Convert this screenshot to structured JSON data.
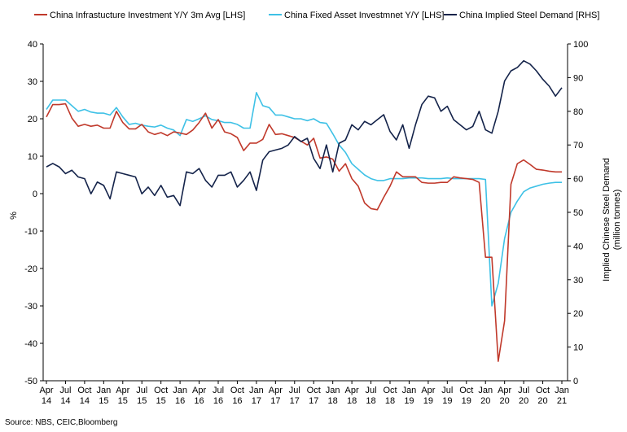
{
  "chart_data": {
    "type": "line",
    "title": "",
    "source": "Source: NBS, CEIC,Bloomberg",
    "left_axis": {
      "label": "%",
      "ylim": [
        -50,
        40
      ],
      "ticks": [
        "40",
        "30",
        "20",
        "10",
        "0",
        "-10",
        "-20",
        "-30",
        "-40",
        "-50"
      ]
    },
    "right_axis": {
      "label_line1": "Implied Chinese Steel Demand",
      "label_line2": "(million tonnes)",
      "ylim": [
        0,
        100
      ],
      "ticks": [
        "100",
        "90",
        "80",
        "70",
        "60",
        "50",
        "40",
        "30",
        "20",
        "10",
        "0"
      ]
    },
    "x_ticks": [
      {
        "month": "Apr",
        "year": "14"
      },
      {
        "month": "Jul",
        "year": "14"
      },
      {
        "month": "Oct",
        "year": "14"
      },
      {
        "month": "Jan",
        "year": "15"
      },
      {
        "month": "Apr",
        "year": "15"
      },
      {
        "month": "Jul",
        "year": "15"
      },
      {
        "month": "Oct",
        "year": "15"
      },
      {
        "month": "Jan",
        "year": "16"
      },
      {
        "month": "Apr",
        "year": "16"
      },
      {
        "month": "Jul",
        "year": "16"
      },
      {
        "month": "Oct",
        "year": "16"
      },
      {
        "month": "Jan",
        "year": "17"
      },
      {
        "month": "Apr",
        "year": "17"
      },
      {
        "month": "Jul",
        "year": "17"
      },
      {
        "month": "Oct",
        "year": "17"
      },
      {
        "month": "Jan",
        "year": "18"
      },
      {
        "month": "Apr",
        "year": "18"
      },
      {
        "month": "Jul",
        "year": "18"
      },
      {
        "month": "Oct",
        "year": "18"
      },
      {
        "month": "Jan",
        "year": "19"
      },
      {
        "month": "Apr",
        "year": "19"
      },
      {
        "month": "Jul",
        "year": "19"
      },
      {
        "month": "Oct",
        "year": "19"
      },
      {
        "month": "Jan",
        "year": "20"
      },
      {
        "month": "Apr",
        "year": "20"
      },
      {
        "month": "Jul",
        "year": "20"
      },
      {
        "month": "Oct",
        "year": "20"
      },
      {
        "month": "Jan",
        "year": "21"
      }
    ],
    "series": [
      {
        "name": "China Infrastucture Investment Y/Y 3m Avg [LHS]",
        "axis": "left",
        "color": "#c0392b",
        "values": [
          20.5,
          23.8,
          23.8,
          24.0,
          20.2,
          18.0,
          18.5,
          18.0,
          18.3,
          17.5,
          17.5,
          22.0,
          19.0,
          17.3,
          17.3,
          18.5,
          16.5,
          15.8,
          16.3,
          15.5,
          16.5,
          16.2,
          15.8,
          17.0,
          19.0,
          21.5,
          17.5,
          19.8,
          16.5,
          16.0,
          15.0,
          11.5,
          13.5,
          13.5,
          14.5,
          18.5,
          15.8,
          16.0,
          15.5,
          15.0,
          14.0,
          13.0,
          14.8,
          9.5,
          9.8,
          9.2,
          6.0,
          8.0,
          4.0,
          2.0,
          -2.5,
          -4.0,
          -4.3,
          -1.0,
          2.0,
          5.8,
          4.5,
          4.5,
          4.5,
          3.0,
          2.8,
          2.8,
          3.0,
          3.0,
          4.5,
          4.2,
          4.0,
          3.8,
          3.0,
          -17.0,
          -17.0,
          -44.8,
          -34.0,
          2.5,
          8.0,
          9.0,
          7.8,
          6.5,
          6.3,
          6.0,
          5.8,
          5.8
        ]
      },
      {
        "name": "China Fixed Asset Investmnet Y/Y [LHS]",
        "axis": "left",
        "color": "#3ec1e6",
        "values": [
          22.5,
          25.0,
          25.0,
          25.0,
          23.5,
          22.0,
          22.5,
          21.8,
          21.5,
          21.5,
          21.0,
          23.0,
          20.5,
          18.5,
          18.8,
          18.3,
          18.0,
          17.8,
          18.3,
          17.5,
          17.0,
          15.5,
          19.8,
          19.3,
          20.0,
          20.8,
          19.8,
          19.5,
          19.0,
          19.0,
          18.5,
          17.5,
          17.5,
          27.0,
          23.5,
          23.0,
          21.0,
          21.0,
          20.5,
          20.0,
          20.0,
          19.5,
          20.0,
          19.0,
          18.8,
          16.0,
          13.0,
          11.0,
          8.0,
          6.5,
          5.0,
          4.0,
          3.5,
          3.5,
          4.0,
          4.0,
          4.0,
          4.2,
          4.2,
          4.2,
          4.0,
          4.0,
          4.0,
          4.2,
          4.0,
          4.0,
          4.0,
          4.0,
          4.0,
          3.8,
          -30.0,
          -24.0,
          -12.0,
          -5.0,
          -2.0,
          0.5,
          1.5,
          2.0,
          2.5,
          2.8,
          3.0,
          3.0
        ]
      },
      {
        "name": "China Implied Steel Demand [RHS]",
        "axis": "right",
        "color": "#14234a",
        "values": [
          63.5,
          64.5,
          63.5,
          61.5,
          62.5,
          60.5,
          60.0,
          55.5,
          59.0,
          58.0,
          54.0,
          62.0,
          61.5,
          61.0,
          60.5,
          55.5,
          57.5,
          55.0,
          58.0,
          54.5,
          55.0,
          52.0,
          62.0,
          61.5,
          63.0,
          59.5,
          57.5,
          61.0,
          61.0,
          62.0,
          57.5,
          59.5,
          62.0,
          56.5,
          65.5,
          68.0,
          68.5,
          69.0,
          70.0,
          72.5,
          71.0,
          72.0,
          66.0,
          63.0,
          70.0,
          62.0,
          70.5,
          71.5,
          76.0,
          74.5,
          77.0,
          76.0,
          77.5,
          79.0,
          74.0,
          71.5,
          76.0,
          69.0,
          76.0,
          82.0,
          84.5,
          84.0,
          80.0,
          81.5,
          77.5,
          76.0,
          74.5,
          75.5,
          80.0,
          74.5,
          73.5,
          80.0,
          89.0,
          92.0,
          93.0,
          95.0,
          94.0,
          92.0,
          89.5,
          87.5,
          84.5,
          87.0
        ]
      }
    ]
  }
}
